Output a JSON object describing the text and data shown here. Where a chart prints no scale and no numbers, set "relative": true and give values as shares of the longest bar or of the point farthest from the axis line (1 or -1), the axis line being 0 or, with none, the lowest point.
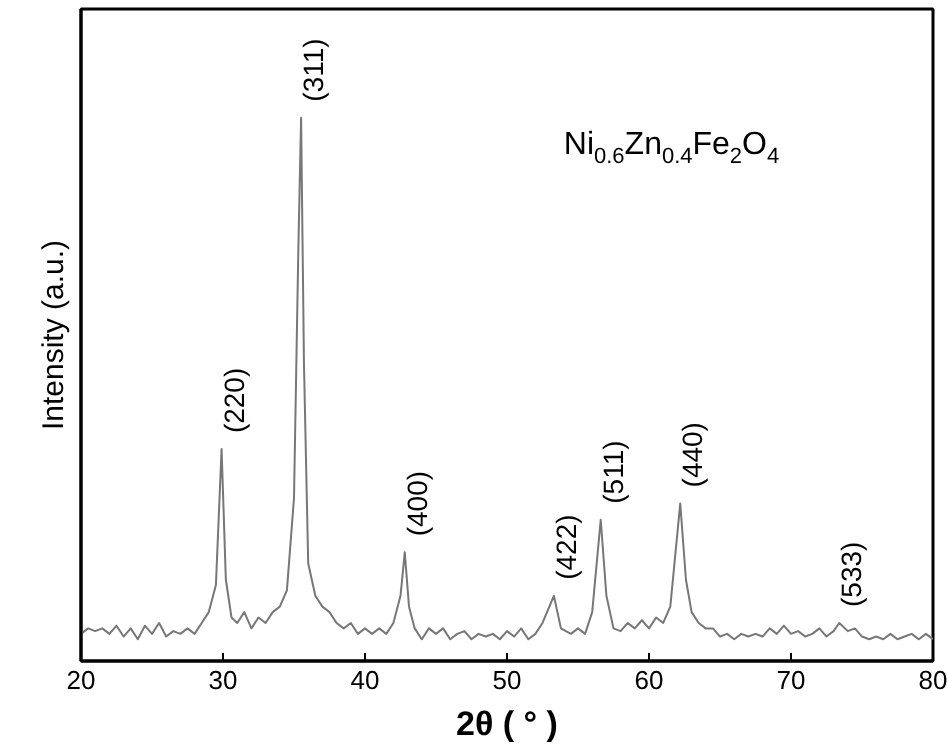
{
  "chart_data": {
    "type": "line",
    "relative": true,
    "xlabel": "2θ ( ° )",
    "ylabel": "Intensity (a.u.)",
    "xlim": [
      20,
      80
    ],
    "xticks": [
      20,
      30,
      40,
      50,
      60,
      70,
      80
    ],
    "grid": false,
    "marker": "none",
    "line_style": "solid",
    "tick_labels": "x",
    "x": [
      20,
      20.5,
      21,
      21.5,
      22,
      22.5,
      23,
      23.5,
      24,
      24.5,
      25,
      25.5,
      26,
      26.5,
      27,
      27.5,
      28,
      28.5,
      29,
      29.5,
      29.9,
      30.2,
      30.6,
      31,
      31.5,
      32,
      32.5,
      33,
      33.5,
      34,
      34.5,
      35,
      35.3,
      35.5,
      35.7,
      36,
      36.5,
      37,
      37.5,
      38,
      38.5,
      39,
      39.5,
      40,
      40.5,
      41,
      41.5,
      42,
      42.5,
      42.8,
      43.1,
      43.5,
      44,
      44.5,
      45,
      45.5,
      46,
      46.5,
      47,
      47.5,
      48,
      48.5,
      49,
      49.5,
      50,
      50.5,
      51,
      51.5,
      52,
      52.5,
      53.3,
      53.8,
      54.5,
      55,
      55.5,
      56,
      56.6,
      57,
      57.5,
      58,
      58.5,
      59,
      59.5,
      60,
      60.5,
      61,
      61.5,
      62.2,
      62.6,
      63,
      63.5,
      64,
      64.5,
      65,
      65.5,
      66,
      66.5,
      67,
      67.5,
      68,
      68.5,
      69,
      69.5,
      70,
      70.5,
      71,
      71.5,
      72,
      72.5,
      73,
      73.4,
      74,
      74.5,
      75,
      75.5,
      76,
      76.5,
      77,
      77.5,
      78,
      78.5,
      79,
      79.5,
      80
    ],
    "series": [
      {
        "color": "#777777",
        "values": [
          0.05,
          0.06,
          0.055,
          0.06,
          0.05,
          0.065,
          0.045,
          0.06,
          0.04,
          0.065,
          0.05,
          0.07,
          0.045,
          0.055,
          0.05,
          0.06,
          0.05,
          0.07,
          0.09,
          0.14,
          0.39,
          0.15,
          0.08,
          0.07,
          0.09,
          0.06,
          0.08,
          0.07,
          0.09,
          0.1,
          0.13,
          0.3,
          0.75,
          1.0,
          0.55,
          0.18,
          0.12,
          0.1,
          0.09,
          0.07,
          0.06,
          0.07,
          0.05,
          0.06,
          0.05,
          0.06,
          0.05,
          0.07,
          0.12,
          0.2,
          0.1,
          0.06,
          0.04,
          0.06,
          0.05,
          0.06,
          0.04,
          0.05,
          0.055,
          0.04,
          0.05,
          0.045,
          0.05,
          0.04,
          0.055,
          0.045,
          0.06,
          0.04,
          0.05,
          0.07,
          0.12,
          0.06,
          0.05,
          0.06,
          0.05,
          0.09,
          0.26,
          0.12,
          0.06,
          0.055,
          0.07,
          0.06,
          0.075,
          0.06,
          0.08,
          0.07,
          0.1,
          0.29,
          0.15,
          0.09,
          0.07,
          0.06,
          0.06,
          0.045,
          0.05,
          0.04,
          0.05,
          0.045,
          0.05,
          0.045,
          0.06,
          0.05,
          0.065,
          0.05,
          0.055,
          0.045,
          0.05,
          0.06,
          0.045,
          0.055,
          0.07,
          0.055,
          0.06,
          0.045,
          0.04,
          0.045,
          0.04,
          0.05,
          0.04,
          0.045,
          0.05,
          0.04,
          0.05,
          0.04
        ]
      }
    ],
    "annotations": [
      {
        "text": "(220)",
        "x": 29.9,
        "y": 0.39
      },
      {
        "text": "(311)",
        "x": 35.5,
        "y": 1.0
      },
      {
        "text": "(400)",
        "x": 42.8,
        "y": 0.2
      },
      {
        "text": "(422)",
        "x": 53.3,
        "y": 0.12
      },
      {
        "text": "(511)",
        "x": 56.6,
        "y": 0.26
      },
      {
        "text": "(440)",
        "x": 62.2,
        "y": 0.29
      },
      {
        "text": "(533)",
        "x": 73.4,
        "y": 0.07
      },
      "Ni$_{0.6}$Zn$_{0.4}$Fe$_{2}$O$_{4}$"
    ]
  }
}
